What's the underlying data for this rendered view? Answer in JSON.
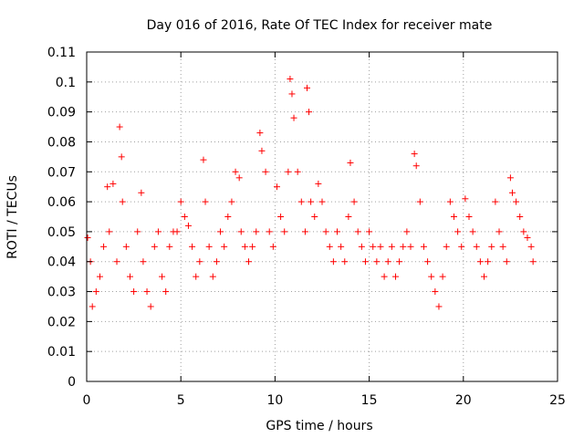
{
  "chart_data": {
    "type": "scatter",
    "title": "Day 016 of 2016, Rate Of TEC Index for receiver mate",
    "xlabel": "GPS time / hours",
    "ylabel": "ROTI / TECUs",
    "xlim": [
      0,
      25
    ],
    "ylim": [
      0,
      0.11
    ],
    "xticks": [
      0,
      5,
      10,
      15,
      20,
      25
    ],
    "xtick_labels": [
      "0",
      "5",
      "10",
      "15",
      "20",
      "25"
    ],
    "yticks": [
      0,
      0.01,
      0.02,
      0.03,
      0.04,
      0.05,
      0.06,
      0.07,
      0.08,
      0.09,
      0.1,
      0.11
    ],
    "ytick_labels": [
      "0",
      "0.01",
      "0.02",
      "0.03",
      "0.04",
      "0.05",
      "0.06",
      "0.07",
      "0.08",
      "0.09",
      "0.1",
      "0.11"
    ],
    "grid": true,
    "marker": "plus",
    "color": "#ff0000",
    "series": [
      {
        "name": "ROTI",
        "x": [
          0.05,
          0.2,
          0.3,
          0.5,
          0.7,
          0.9,
          1.1,
          1.2,
          1.4,
          1.6,
          1.75,
          1.85,
          1.9,
          2.1,
          2.3,
          2.5,
          2.7,
          2.9,
          3.0,
          3.2,
          3.4,
          3.6,
          3.8,
          4.0,
          4.2,
          4.4,
          4.6,
          4.8,
          5.0,
          5.2,
          5.4,
          5.6,
          5.8,
          6.0,
          6.2,
          6.3,
          6.5,
          6.7,
          6.9,
          7.1,
          7.3,
          7.5,
          7.7,
          7.9,
          8.1,
          8.2,
          8.4,
          8.6,
          8.8,
          9.0,
          9.2,
          9.3,
          9.5,
          9.7,
          9.9,
          10.1,
          10.3,
          10.5,
          10.7,
          10.8,
          10.9,
          11.0,
          11.2,
          11.4,
          11.6,
          11.7,
          11.8,
          11.9,
          12.1,
          12.3,
          12.5,
          12.7,
          12.9,
          13.1,
          13.3,
          13.5,
          13.7,
          13.9,
          14.0,
          14.2,
          14.4,
          14.6,
          14.8,
          15.0,
          15.2,
          15.4,
          15.6,
          15.8,
          16.0,
          16.2,
          16.4,
          16.6,
          16.8,
          17.0,
          17.2,
          17.4,
          17.5,
          17.7,
          17.9,
          18.1,
          18.3,
          18.5,
          18.7,
          18.9,
          19.1,
          19.3,
          19.5,
          19.7,
          19.9,
          20.1,
          20.3,
          20.5,
          20.7,
          20.9,
          21.1,
          21.3,
          21.5,
          21.7,
          21.9,
          22.1,
          22.3,
          22.5,
          22.6,
          22.8,
          23.0,
          23.2,
          23.4,
          23.6,
          23.7
        ],
        "y": [
          0.048,
          0.04,
          0.025,
          0.03,
          0.035,
          0.045,
          0.065,
          0.05,
          0.066,
          0.04,
          0.085,
          0.075,
          0.06,
          0.045,
          0.035,
          0.03,
          0.05,
          0.063,
          0.04,
          0.03,
          0.025,
          0.045,
          0.05,
          0.035,
          0.03,
          0.045,
          0.05,
          0.05,
          0.06,
          0.055,
          0.052,
          0.045,
          0.035,
          0.04,
          0.074,
          0.06,
          0.045,
          0.035,
          0.04,
          0.05,
          0.045,
          0.055,
          0.06,
          0.07,
          0.068,
          0.05,
          0.045,
          0.04,
          0.045,
          0.05,
          0.083,
          0.077,
          0.07,
          0.05,
          0.045,
          0.065,
          0.055,
          0.05,
          0.07,
          0.101,
          0.096,
          0.088,
          0.07,
          0.06,
          0.05,
          0.098,
          0.09,
          0.06,
          0.055,
          0.066,
          0.06,
          0.05,
          0.045,
          0.04,
          0.05,
          0.045,
          0.04,
          0.055,
          0.073,
          0.06,
          0.05,
          0.045,
          0.04,
          0.05,
          0.045,
          0.04,
          0.045,
          0.035,
          0.04,
          0.045,
          0.035,
          0.04,
          0.045,
          0.05,
          0.045,
          0.076,
          0.072,
          0.06,
          0.045,
          0.04,
          0.035,
          0.03,
          0.025,
          0.035,
          0.045,
          0.06,
          0.055,
          0.05,
          0.045,
          0.061,
          0.055,
          0.05,
          0.045,
          0.04,
          0.035,
          0.04,
          0.045,
          0.06,
          0.05,
          0.045,
          0.04,
          0.068,
          0.063,
          0.06,
          0.055,
          0.05,
          0.048,
          0.045,
          0.04
        ]
      }
    ]
  }
}
